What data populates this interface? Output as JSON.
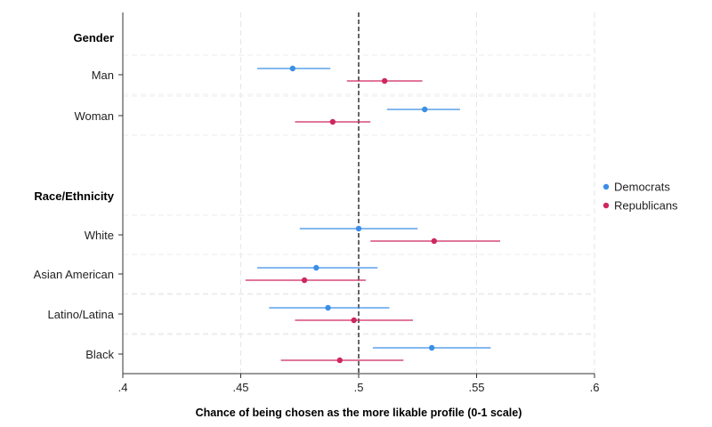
{
  "chart_data": {
    "type": "scatter",
    "subtype": "coefficient-plot-with-confidence-intervals",
    "xlabel": "Chance of being chosen as the more likable profile (0-1 scale)",
    "xlim": [
      0.4,
      0.6
    ],
    "xticks": [
      0.4,
      0.45,
      0.5,
      0.55,
      0.6
    ],
    "xtick_labels": [
      ".4",
      ".45",
      ".5",
      ".55",
      ".6"
    ],
    "reference_line": 0.5,
    "grid": true,
    "legend_position": "right",
    "groups": [
      {
        "label": "Gender",
        "rows": [
          {
            "label": "Man",
            "estimates": {
              "Democrats": {
                "est": 0.472,
                "lo": 0.457,
                "hi": 0.488
              },
              "Republicans": {
                "est": 0.511,
                "lo": 0.495,
                "hi": 0.527
              }
            }
          },
          {
            "label": "Woman",
            "estimates": {
              "Democrats": {
                "est": 0.528,
                "lo": 0.512,
                "hi": 0.543
              },
              "Republicans": {
                "est": 0.489,
                "lo": 0.473,
                "hi": 0.505
              }
            }
          }
        ]
      },
      {
        "label": "Race/Ethnicity",
        "rows": [
          {
            "label": "White",
            "estimates": {
              "Democrats": {
                "est": 0.5,
                "lo": 0.475,
                "hi": 0.525
              },
              "Republicans": {
                "est": 0.532,
                "lo": 0.505,
                "hi": 0.56
              }
            }
          },
          {
            "label": "Asian American",
            "estimates": {
              "Democrats": {
                "est": 0.482,
                "lo": 0.457,
                "hi": 0.508
              },
              "Republicans": {
                "est": 0.477,
                "lo": 0.452,
                "hi": 0.503
              }
            }
          },
          {
            "label": "Latino/Latina",
            "estimates": {
              "Democrats": {
                "est": 0.487,
                "lo": 0.462,
                "hi": 0.513
              },
              "Republicans": {
                "est": 0.498,
                "lo": 0.473,
                "hi": 0.523
              }
            }
          },
          {
            "label": "Black",
            "estimates": {
              "Democrats": {
                "est": 0.531,
                "lo": 0.506,
                "hi": 0.556
              },
              "Republicans": {
                "est": 0.492,
                "lo": 0.467,
                "hi": 0.519
              }
            }
          }
        ]
      }
    ],
    "series": [
      {
        "name": "Democrats",
        "color": "#3b8fe6"
      },
      {
        "name": "Republicans",
        "color": "#cf2660"
      }
    ]
  }
}
